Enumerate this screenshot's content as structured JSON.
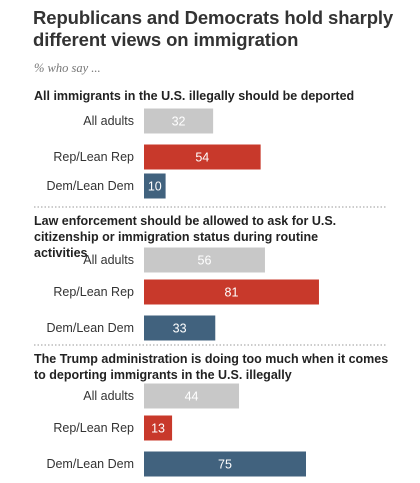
{
  "title": "Republicans and Democrats hold sharply different views on immigration",
  "subtitle": "% who say ...",
  "colors": {
    "all_adults": "#c8c8c8",
    "rep": "#c8392b",
    "dem": "#41627e"
  },
  "chart_data": {
    "type": "bar",
    "orientation": "horizontal",
    "xlim": [
      0,
      100
    ],
    "categories": [
      "All adults",
      "Rep/Lean Rep",
      "Dem/Lean Dem"
    ],
    "panels": [
      {
        "question": "All immigrants in the U.S. illegally should be deported",
        "values": [
          32,
          54,
          10
        ]
      },
      {
        "question": "Law enforcement should be allowed to ask for U.S. citizenship or immigration status during routine activities",
        "values": [
          56,
          81,
          33
        ]
      },
      {
        "question": "The Trump administration is doing too much when it comes to deporting immigrants in the U.S. illegally",
        "values": [
          44,
          13,
          75
        ]
      }
    ]
  }
}
